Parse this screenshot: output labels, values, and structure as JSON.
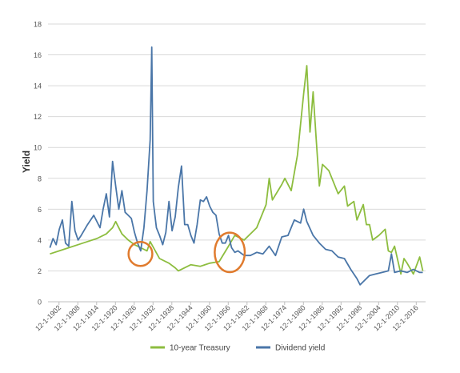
{
  "chart_data": {
    "type": "line",
    "ylabel": "Yield",
    "xlabel": "",
    "ylim": [
      0,
      18
    ],
    "yticks": [
      0,
      2,
      4,
      6,
      8,
      10,
      12,
      14,
      16,
      18
    ],
    "xlim": [
      1899.4,
      2019.9
    ],
    "xticks": [
      "12-1-1902",
      "12-1-1908",
      "12-1-1914",
      "12-1-1920",
      "12-1-1926",
      "12-1-1932",
      "12-1-1938",
      "12-1-1944",
      "12-1-1950",
      "12-1-1956",
      "12-1-1962",
      "12-1-1968",
      "12-1-1974",
      "12-1-1980",
      "12-1-1986",
      "12-1-1992",
      "12-1-1998",
      "12-1-2004",
      "12-1-2010",
      "12-1-2016"
    ],
    "grid": true,
    "legend_position": "bottom",
    "series": [
      {
        "name": "10-year Treasury",
        "color": "#8dbd3f",
        "x": [
          1900,
          1903,
          1906,
          1909,
          1912,
          1915,
          1918,
          1920,
          1921,
          1923,
          1925,
          1927,
          1929,
          1931,
          1932,
          1935,
          1938,
          1940,
          1941,
          1945,
          1948,
          1951,
          1954,
          1957,
          1959,
          1962,
          1966,
          1969,
          1970,
          1971,
          1974,
          1975,
          1977,
          1979,
          1980,
          1981,
          1982,
          1983,
          1984,
          1985,
          1986,
          1987,
          1989,
          1992,
          1994,
          1995,
          1997,
          1998,
          2000,
          2001,
          2002,
          2003,
          2005,
          2007,
          2008,
          2009,
          2010,
          2012,
          2013,
          2014,
          2016,
          2018,
          2019
        ],
        "y": [
          3.1,
          3.3,
          3.5,
          3.7,
          3.9,
          4.1,
          4.4,
          4.8,
          5.2,
          4.4,
          4.0,
          3.7,
          3.5,
          3.3,
          3.9,
          2.8,
          2.5,
          2.2,
          2.0,
          2.4,
          2.3,
          2.5,
          2.6,
          3.6,
          4.3,
          4.0,
          4.8,
          6.3,
          8.0,
          6.6,
          7.6,
          8.0,
          7.2,
          9.5,
          11.5,
          13.5,
          15.3,
          11.0,
          13.6,
          10.5,
          7.5,
          8.9,
          8.5,
          7.0,
          7.5,
          6.2,
          6.5,
          5.3,
          6.3,
          5.0,
          5.0,
          4.0,
          4.3,
          4.7,
          3.3,
          3.2,
          3.6,
          1.8,
          2.8,
          2.5,
          1.8,
          2.9,
          2.0
        ]
      },
      {
        "name": "Dividend yield",
        "color": "#4a76a8",
        "x": [
          1900,
          1901,
          1902,
          1903,
          1904,
          1905,
          1906,
          1907,
          1908,
          1909,
          1910,
          1912,
          1914,
          1916,
          1917,
          1918,
          1919,
          1920,
          1921,
          1922,
          1923,
          1924,
          1925,
          1926,
          1927,
          1928,
          1929,
          1930,
          1931,
          1932,
          1932.5,
          1933,
          1934,
          1935,
          1936,
          1937,
          1938,
          1939,
          1940,
          1941,
          1942,
          1943,
          1944,
          1945,
          1946,
          1947,
          1948,
          1949,
          1950,
          1951,
          1952,
          1953,
          1954,
          1955,
          1956,
          1957,
          1958,
          1959,
          1960,
          1962,
          1964,
          1966,
          1968,
          1970,
          1972,
          1974,
          1976,
          1978,
          1980,
          1981,
          1982,
          1984,
          1986,
          1988,
          1990,
          1992,
          1994,
          1996,
          1998,
          1999,
          2000,
          2002,
          2004,
          2006,
          2008,
          2009,
          2010,
          2012,
          2014,
          2016,
          2018,
          2019
        ],
        "y": [
          3.5,
          4.1,
          3.7,
          4.7,
          5.3,
          3.8,
          3.6,
          6.5,
          4.6,
          4.0,
          4.3,
          5.0,
          5.6,
          4.8,
          6.0,
          7.0,
          5.5,
          9.1,
          7.5,
          6.0,
          7.2,
          5.8,
          5.6,
          5.4,
          4.5,
          3.8,
          3.3,
          4.8,
          7.2,
          10.5,
          16.5,
          6.5,
          4.8,
          4.3,
          3.7,
          4.5,
          6.5,
          4.6,
          5.5,
          7.4,
          8.8,
          5.0,
          5.0,
          4.3,
          3.8,
          5.0,
          6.6,
          6.5,
          6.8,
          6.2,
          5.8,
          5.6,
          4.4,
          3.8,
          3.8,
          4.3,
          3.5,
          3.2,
          3.3,
          3.0,
          3.0,
          3.2,
          3.1,
          3.6,
          3.0,
          4.2,
          4.3,
          5.3,
          5.1,
          6.0,
          5.2,
          4.3,
          3.8,
          3.4,
          3.3,
          2.9,
          2.8,
          2.1,
          1.5,
          1.1,
          1.3,
          1.7,
          1.8,
          1.9,
          2.0,
          3.1,
          1.9,
          2.0,
          1.9,
          2.1,
          1.9,
          1.9
        ]
      }
    ],
    "annotations": [
      {
        "shape": "circle",
        "color": "#e07b2e",
        "cx": 1928.9,
        "cy": 3.1,
        "rx": 3.8,
        "ry": 0.78
      },
      {
        "shape": "circle",
        "color": "#e07b2e",
        "cx": 1957.4,
        "cy": 3.2,
        "rx": 4.8,
        "ry": 1.28
      }
    ]
  }
}
